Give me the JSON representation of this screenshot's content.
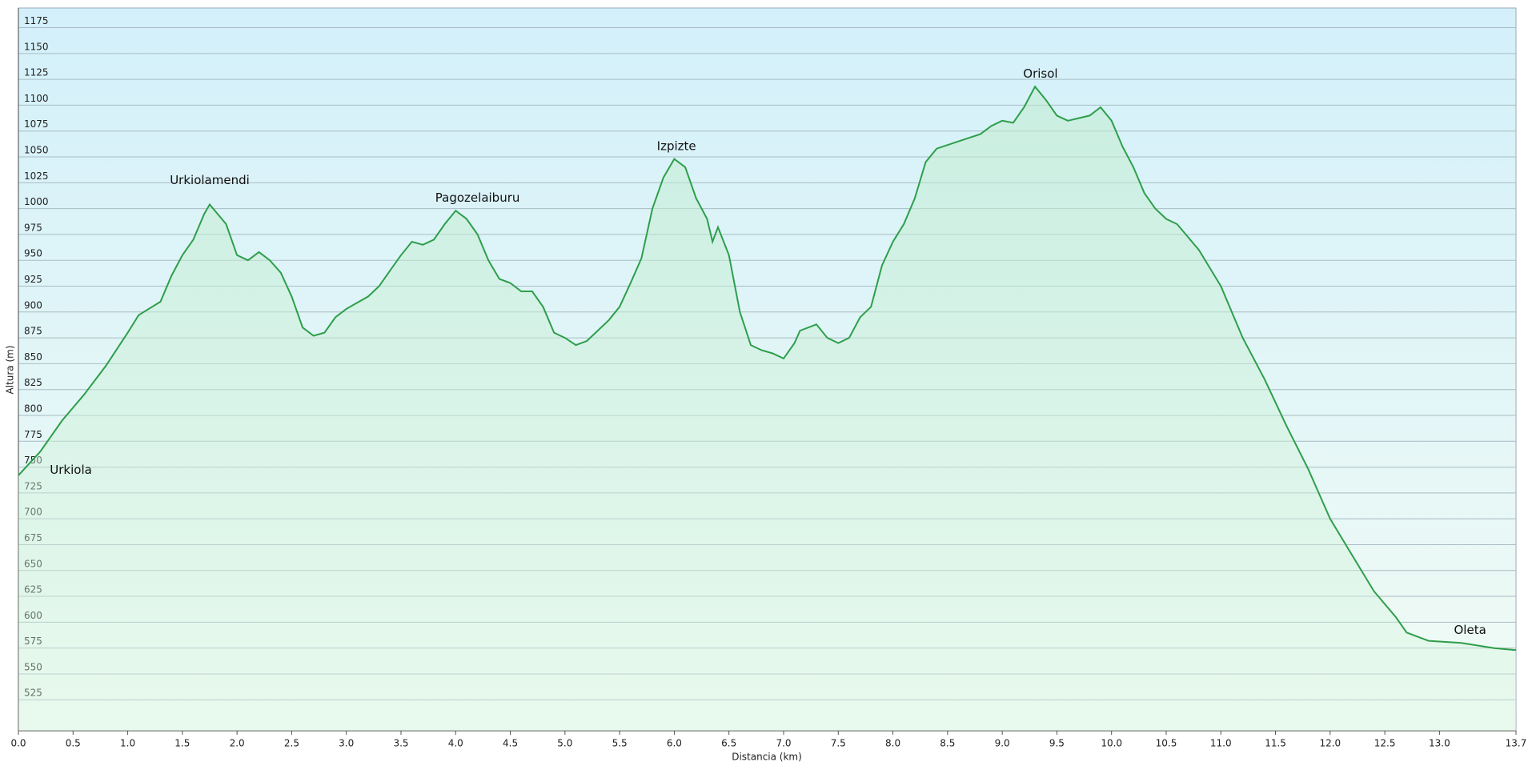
{
  "chart_data": {
    "type": "line",
    "xlabel": "Distancia  (km)",
    "ylabel": "Altura (m)",
    "xlim": [
      0,
      13.7
    ],
    "ylim": [
      495,
      1194
    ],
    "xticks": [
      {
        "value": 0,
        "label": "0.0"
      },
      0.5,
      {
        "value": 1,
        "label": "1.0"
      },
      1.5,
      {
        "value": 2,
        "label": "2.0"
      },
      2.5,
      {
        "value": 3,
        "label": "3.0"
      },
      3.5,
      {
        "value": 4,
        "label": "4.0"
      },
      4.5,
      {
        "value": 5,
        "label": "5.0"
      },
      5.5,
      {
        "value": 6,
        "label": "6.0"
      },
      6.5,
      {
        "value": 7,
        "label": "7.0"
      },
      7.5,
      {
        "value": 8,
        "label": "8.0"
      },
      8.5,
      {
        "value": 9,
        "label": "9.0"
      },
      9.5,
      {
        "value": 10,
        "label": "10.0"
      },
      10.5,
      {
        "value": 11,
        "label": "11.0"
      },
      11.5,
      {
        "value": 12,
        "label": "12.0"
      },
      12.5,
      {
        "value": 13,
        "label": "13.0"
      },
      13.7
    ],
    "yticks": [
      525,
      550,
      575,
      600,
      625,
      650,
      675,
      700,
      725,
      750,
      775,
      800,
      825,
      850,
      875,
      900,
      925,
      950,
      975,
      1000,
      1025,
      1050,
      1075,
      1100,
      1125,
      1150,
      1175
    ],
    "grid": true,
    "color": "#2e9e4a",
    "x": [
      0,
      0.2,
      0.4,
      0.6,
      0.8,
      1.0,
      1.1,
      1.3,
      1.4,
      1.5,
      1.6,
      1.7,
      1.75,
      1.9,
      2.0,
      2.1,
      2.2,
      2.3,
      2.4,
      2.5,
      2.6,
      2.7,
      2.8,
      2.9,
      3.0,
      3.2,
      3.3,
      3.4,
      3.5,
      3.6,
      3.7,
      3.8,
      3.9,
      4.0,
      4.1,
      4.2,
      4.3,
      4.4,
      4.5,
      4.6,
      4.7,
      4.8,
      4.9,
      5.0,
      5.1,
      5.2,
      5.3,
      5.4,
      5.5,
      5.6,
      5.7,
      5.8,
      5.9,
      6.0,
      6.1,
      6.2,
      6.3,
      6.35,
      6.4,
      6.5,
      6.6,
      6.7,
      6.8,
      6.9,
      7.0,
      7.1,
      7.15,
      7.3,
      7.4,
      7.5,
      7.6,
      7.7,
      7.8,
      7.9,
      8.0,
      8.1,
      8.2,
      8.3,
      8.4,
      8.6,
      8.8,
      8.9,
      9.0,
      9.1,
      9.2,
      9.3,
      9.4,
      9.5,
      9.6,
      9.8,
      9.9,
      10.0,
      10.1,
      10.2,
      10.3,
      10.4,
      10.5,
      10.6,
      10.8,
      11.0,
      11.2,
      11.4,
      11.6,
      11.8,
      12.0,
      12.2,
      12.4,
      12.6,
      12.7,
      12.9,
      13.2,
      13.5,
      13.7
    ],
    "values": [
      742,
      765,
      795,
      820,
      848,
      880,
      897,
      910,
      935,
      955,
      970,
      995,
      1004,
      985,
      955,
      950,
      958,
      950,
      938,
      915,
      885,
      877,
      880,
      895,
      903,
      915,
      925,
      940,
      955,
      968,
      965,
      970,
      985,
      998,
      990,
      975,
      950,
      932,
      928,
      920,
      920,
      905,
      880,
      875,
      868,
      872,
      882,
      892,
      905,
      928,
      952,
      1000,
      1030,
      1048,
      1040,
      1010,
      990,
      968,
      982,
      955,
      900,
      868,
      863,
      860,
      855,
      870,
      882,
      888,
      875,
      870,
      875,
      895,
      905,
      945,
      968,
      985,
      1010,
      1045,
      1058,
      1065,
      1072,
      1080,
      1085,
      1083,
      1098,
      1118,
      1105,
      1090,
      1085,
      1090,
      1098,
      1085,
      1060,
      1040,
      1015,
      1000,
      990,
      985,
      960,
      925,
      875,
      835,
      790,
      748,
      700,
      665,
      630,
      605,
      590,
      582,
      580,
      575,
      573
    ],
    "annotations": [
      {
        "text": "Urkiola",
        "x": 0.48,
        "y": 747
      },
      {
        "text": "Urkiolamendi",
        "x": 1.75,
        "y": 1027
      },
      {
        "text": "Pagozelaiburu",
        "x": 4.2,
        "y": 1010
      },
      {
        "text": "Izpizte",
        "x": 6.02,
        "y": 1060
      },
      {
        "text": "Orisol",
        "x": 9.35,
        "y": 1130
      },
      {
        "text": "Oleta",
        "x": 13.28,
        "y": 592
      }
    ]
  }
}
